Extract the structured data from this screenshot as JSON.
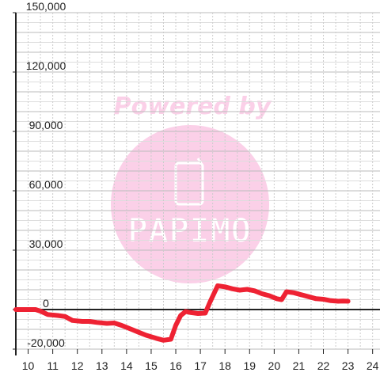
{
  "chart_data": {
    "type": "line",
    "title": "",
    "xlabel": "",
    "ylabel": "",
    "x_ticks": [
      "10",
      "11",
      "12",
      "13",
      "14",
      "15",
      "16",
      "17",
      "18",
      "19",
      "20",
      "21",
      "22",
      "23",
      "24"
    ],
    "xlim": [
      9.5,
      24.3
    ],
    "y_ticks": [
      "150,000",
      "120,000",
      "90,000",
      "60,000",
      "30,000",
      "0",
      "-20,000"
    ],
    "y_tick_values": [
      150000,
      120000,
      90000,
      60000,
      30000,
      0,
      -20000
    ],
    "ylim": [
      -20000,
      150000
    ],
    "grid": true,
    "legend": "none",
    "series": [
      {
        "color": "#ee2233",
        "x": [
          9.5,
          10.0,
          10.3,
          10.5,
          10.8,
          11.2,
          11.5,
          11.8,
          12.2,
          12.5,
          12.8,
          13.2,
          13.5,
          13.8,
          14.2,
          14.5,
          14.8,
          15.2,
          15.5,
          15.8,
          16.0,
          16.2,
          16.4,
          16.6,
          16.9,
          17.2,
          17.4,
          17.7,
          18.0,
          18.3,
          18.6,
          18.9,
          19.2,
          19.5,
          19.8,
          20.1,
          20.3,
          20.5,
          20.8,
          21.1,
          21.4,
          21.7,
          22.0,
          22.3,
          22.6,
          22.8,
          23.0
        ],
        "y": [
          0,
          0,
          0,
          -800,
          -2500,
          -3000,
          -3500,
          -5500,
          -6000,
          -6000,
          -6500,
          -7000,
          -6800,
          -8000,
          -10000,
          -11500,
          -13000,
          -14500,
          -15500,
          -15000,
          -8000,
          -3000,
          -1000,
          -1500,
          -2000,
          -1800,
          4000,
          12000,
          11500,
          10500,
          9800,
          10200,
          9500,
          8000,
          7000,
          5500,
          5000,
          9000,
          8500,
          7500,
          6500,
          5500,
          5200,
          4500,
          4200,
          4300,
          4200
        ]
      }
    ]
  },
  "watermark": {
    "title": "Powered by",
    "brand": "PAPIMO"
  }
}
